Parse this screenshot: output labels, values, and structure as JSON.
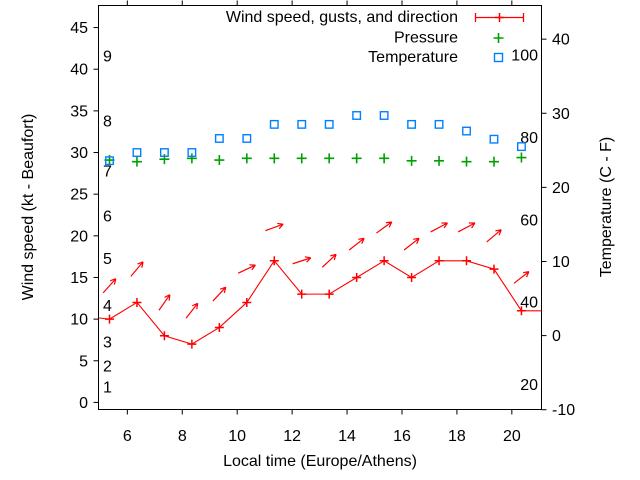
{
  "chart_data": {
    "type": "line",
    "title": "",
    "xlabel": "Local time (Europe/Athens)",
    "ylabel_left": "Wind speed (kt - Beaufort)",
    "ylabel_right": "Temperature (C - F)",
    "x_ticks": [
      6,
      8,
      10,
      12,
      14,
      16,
      18,
      20
    ],
    "x_range": [
      4.95,
      21.08
    ],
    "y_left_ticks": [
      0,
      5,
      10,
      15,
      20,
      25,
      30,
      35,
      40,
      45
    ],
    "y_left_range": [
      -0.85,
      47.65
    ],
    "y_right_ticks": [
      -10,
      0,
      10,
      20,
      30,
      40
    ],
    "y_right_range": [
      -9.97,
      44.54
    ],
    "beaufort_scale_labels": [
      {
        "label": "1",
        "kt": 1.8
      },
      {
        "label": "2",
        "kt": 4.3
      },
      {
        "label": "3",
        "kt": 7.2
      },
      {
        "label": "4",
        "kt": 11.6
      },
      {
        "label": "5",
        "kt": 17.2
      },
      {
        "label": "6",
        "kt": 22.3
      },
      {
        "label": "7",
        "kt": 27.7
      },
      {
        "label": "8",
        "kt": 33.7
      },
      {
        "label": "9",
        "kt": 41.5
      }
    ],
    "fahrenheit_scale_labels": [
      20,
      40,
      60,
      80,
      100
    ],
    "times": [
      5.35,
      6.35,
      7.35,
      8.35,
      9.35,
      10.35,
      11.35,
      12.35,
      13.35,
      14.35,
      15.35,
      16.35,
      17.35,
      18.35,
      19.35,
      20.35
    ],
    "series": [
      {
        "name": "Wind speed, gusts, and direction",
        "color": "#ff0000",
        "marker": "plus",
        "axis": "left",
        "speed_kt": [
          10,
          12,
          8,
          7,
          9,
          12,
          17,
          13,
          13,
          15,
          17,
          15,
          17,
          17,
          16,
          11
        ],
        "gust_kt": [
          14,
          16,
          12,
          11,
          13,
          16,
          21,
          17,
          17,
          19,
          21,
          19,
          21,
          21,
          20,
          15
        ],
        "direction_deg": [
          48,
          50,
          55,
          52,
          47,
          25,
          20,
          18,
          43,
          38,
          36,
          38,
          28,
          28,
          40,
          38
        ],
        "edge_lead_kt": 10.15,
        "edge_trail_kt": 11
      },
      {
        "name": "Pressure",
        "color": "#00a000",
        "marker": "plus",
        "axis": "hidden",
        "level_kt": [
          29.1,
          28.9,
          29.2,
          29.3,
          29.1,
          29.3,
          29.3,
          29.3,
          29.3,
          29.3,
          29.3,
          29.0,
          29.0,
          28.9,
          28.9,
          29.4
        ]
      },
      {
        "name": "Temperature",
        "color": "#0080ff",
        "marker": "square",
        "axis": "right",
        "celsius": [
          23.6,
          24.7,
          24.7,
          24.7,
          26.6,
          26.6,
          28.5,
          28.5,
          28.5,
          29.7,
          29.7,
          28.5,
          28.5,
          27.6,
          26.5,
          25.5
        ]
      }
    ],
    "legend": {
      "position": "top-right-inside",
      "entries": [
        "Wind speed, gusts, and direction",
        "Pressure",
        "Temperature"
      ]
    },
    "grid": false,
    "tics_direction": "out"
  }
}
